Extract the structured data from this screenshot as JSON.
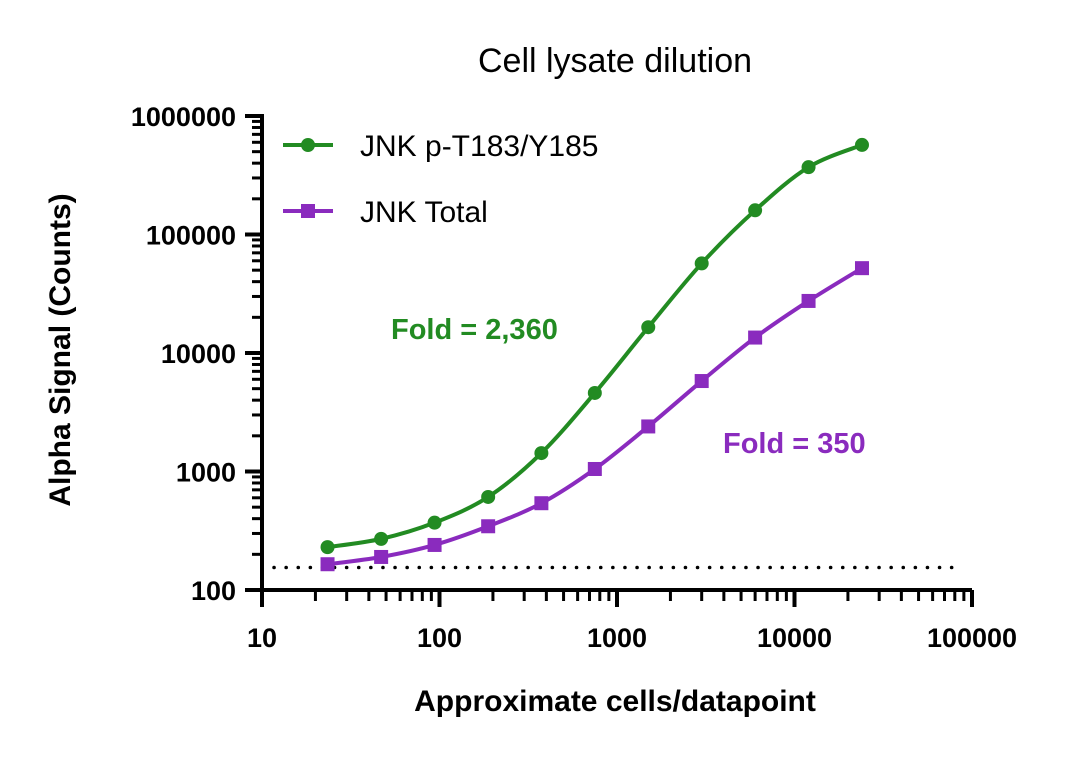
{
  "chart_data": {
    "type": "line",
    "title": "Cell lysate dilution",
    "xlabel": "Approximate cells/datapoint",
    "ylabel": "Alpha Signal (Counts)",
    "xscale": "log",
    "yscale": "log",
    "xlim": [
      10,
      100000
    ],
    "ylim": [
      100,
      1000000
    ],
    "xticks": [
      10,
      100,
      1000,
      10000,
      100000
    ],
    "xtick_labels": [
      "10",
      "100",
      "1000",
      "10000",
      "100000"
    ],
    "yticks": [
      100,
      1000,
      10000,
      100000,
      1000000
    ],
    "ytick_labels": [
      "100",
      "1000",
      "10000",
      "100000",
      "1000000"
    ],
    "grid": false,
    "legend_position": "top-left",
    "series": [
      {
        "name": "JNK p-T183/Y185",
        "color": "#228B22",
        "marker": "circle",
        "x": [
          23.4,
          46.9,
          93.8,
          188,
          375,
          750,
          1500,
          3000,
          6000,
          12000,
          24000
        ],
        "y": [
          230,
          270,
          370,
          610,
          1430,
          4600,
          16500,
          57000,
          160000,
          370000,
          570000
        ]
      },
      {
        "name": "JNK Total",
        "color": "#8A2BBE",
        "marker": "square",
        "x": [
          23.4,
          46.9,
          93.8,
          188,
          375,
          750,
          1500,
          3000,
          6000,
          12000,
          24000
        ],
        "y": [
          165,
          190,
          240,
          345,
          540,
          1050,
          2400,
          5800,
          13500,
          27500,
          52000
        ]
      }
    ],
    "reference_line": {
      "y": 155,
      "style": "dotted",
      "color": "#000000"
    },
    "annotations": [
      {
        "text": "Fold = 2,360",
        "color": "#228B22"
      },
      {
        "text": "Fold = 350",
        "color": "#8A2BBE"
      }
    ]
  }
}
